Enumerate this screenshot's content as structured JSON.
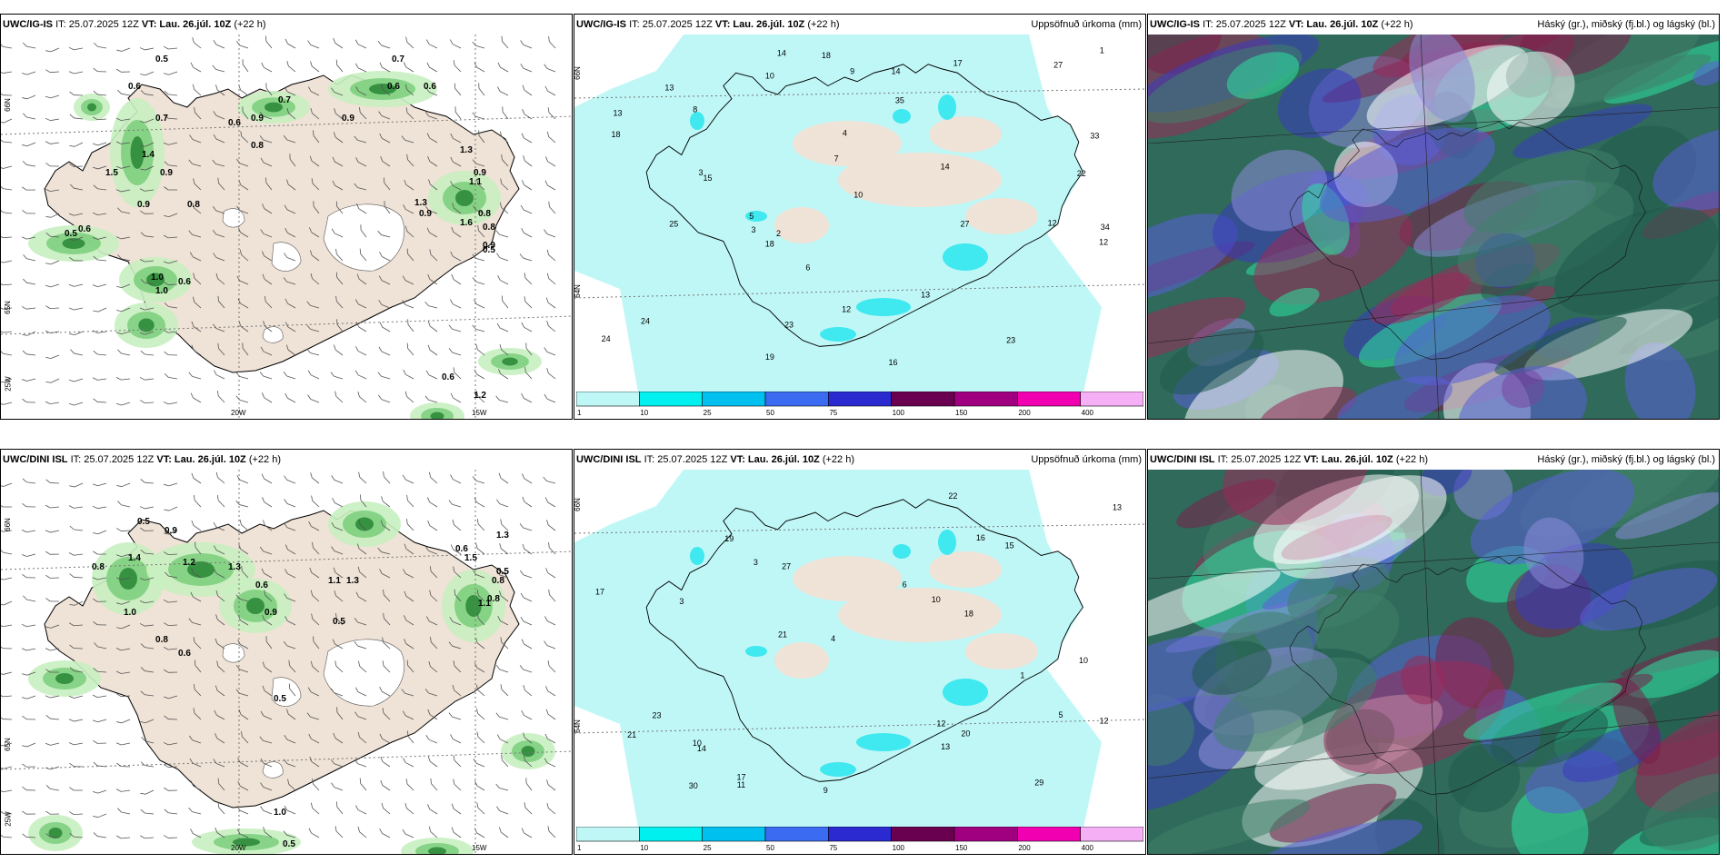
{
  "rows": [
    {
      "model": "UWC/IG-IS",
      "it": "IT: 25.07.2025 12Z",
      "vt_label": "VT:",
      "vt": "Lau. 26.júl. 10Z",
      "lead": "(+22 h)"
    },
    {
      "model": "UWC/DINI ISL",
      "it": "IT: 25.07.2025 12Z",
      "vt_label": "VT:",
      "vt": "Lau. 26.júl. 10Z",
      "lead": "(+22 h)"
    }
  ],
  "precip_title": "Uppsöfnuð úrkoma (mm)",
  "cloud_title": "Háský (gr.), miðský (fj.bl.) og lágský (bl.)",
  "axis_labels": {
    "lon_20w": "20W",
    "lon_15w": "15W",
    "lat_66n": "66N",
    "lat_64n": "64N",
    "lat_65n": "65N",
    "lat_25w": "25W"
  },
  "colorbar": {
    "ticks": [
      "1",
      "10",
      "25",
      "50",
      "75",
      "100",
      "150",
      "200",
      "400"
    ],
    "colors": [
      "#bff7f7",
      "#00f0f0",
      "#00c0f0",
      "#3a6bf0",
      "#2a2ad0",
      "#6a0050",
      "#a00080",
      "#f000b0",
      "#f5b0f5"
    ]
  },
  "precip_labels_top": [
    "6",
    "3",
    "12",
    "4",
    "25",
    "5",
    "3",
    "24",
    "33",
    "22",
    "12",
    "13",
    "12",
    "13",
    "15",
    "14",
    "27",
    "10",
    "14",
    "16",
    "18",
    "23",
    "24",
    "13",
    "18",
    "35",
    "34",
    "27",
    "14",
    "18",
    "17",
    "19",
    "23",
    "10",
    "8",
    "2",
    "1",
    "9",
    "7"
  ],
  "precip_labels_bottom": [
    "10",
    "10",
    "3",
    "21",
    "6",
    "5",
    "13",
    "10",
    "18",
    "30",
    "15",
    "12",
    "19",
    "20",
    "13",
    "14",
    "17",
    "23",
    "27",
    "29",
    "22",
    "21",
    "16",
    "17",
    "12",
    "11",
    "9",
    "4",
    "1",
    "3"
  ],
  "wind_labels_top": [
    "0.5",
    "0.7",
    "0.6",
    "0.6",
    "0.7",
    "0.6",
    "0.9",
    "1.4",
    "0.9",
    "0.8",
    "0.6",
    "0.9",
    "0.7",
    "1.5",
    "0.5",
    "0.6",
    "0.9",
    "0.8",
    "1.0",
    "1.3",
    "0.9",
    "1.1",
    "1.3",
    "0.9",
    "1.6",
    "0.8",
    "0.9",
    "0.8",
    "1.0",
    "0.6",
    "1.2",
    "0.5",
    "0.6"
  ],
  "wind_labels_bottom": [
    "0.5",
    "0.9",
    "0.8",
    "1.4",
    "1.2",
    "1.3",
    "0.6",
    "0.9",
    "0.5",
    "0.6",
    "1.0",
    "0.8",
    "1.1",
    "1.3",
    "0.8",
    "1.5",
    "0.5",
    "0.8",
    "1.1",
    "0.6",
    "0.5",
    "1.0",
    "0.5",
    "0.6",
    "1.3"
  ]
}
